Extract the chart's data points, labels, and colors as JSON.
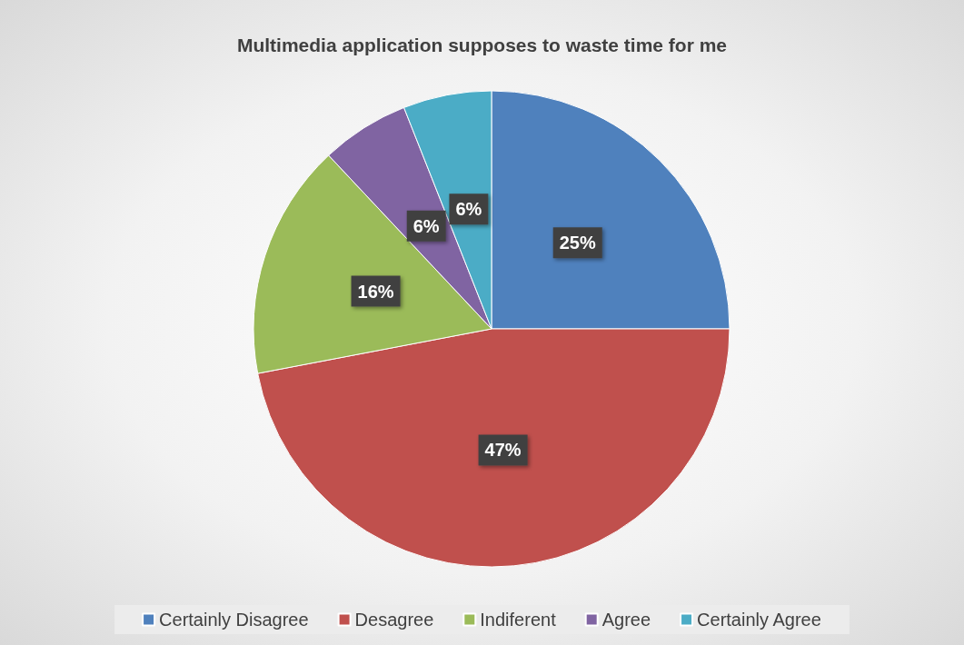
{
  "chart_data": {
    "type": "pie",
    "title": "Multimedia application supposes to waste time for me",
    "categories": [
      "Certainly Disagree",
      "Desagree",
      "Indiferent",
      "Agree",
      "Certainly Agree"
    ],
    "values": [
      25,
      47,
      16,
      6,
      6
    ],
    "value_labels": [
      "25%",
      "47%",
      "16%",
      "6%",
      "6%"
    ],
    "colors": [
      "#4f81bd",
      "#c0504d",
      "#9bbb59",
      "#8064a2",
      "#4bacc6"
    ],
    "legend": "bottom"
  }
}
